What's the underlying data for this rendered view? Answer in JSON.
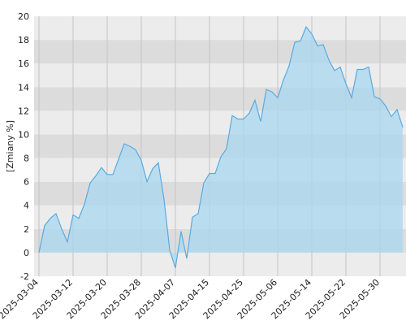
{
  "chart_data": {
    "type": "area",
    "ylabel": "[Zmiany %]",
    "categories": [
      "2025-03-04",
      null,
      null,
      null,
      null,
      null,
      "2025-03-12",
      null,
      null,
      null,
      null,
      null,
      "2025-03-20",
      null,
      null,
      null,
      null,
      null,
      "2025-03-28",
      null,
      null,
      null,
      null,
      null,
      "2025-04-07",
      null,
      null,
      null,
      null,
      null,
      "2025-04-15",
      null,
      null,
      null,
      null,
      null,
      "2025-04-25",
      null,
      null,
      null,
      null,
      null,
      "2025-05-06",
      null,
      null,
      null,
      null,
      null,
      "2025-05-14",
      null,
      null,
      null,
      null,
      null,
      "2025-05-22",
      null,
      null,
      null,
      null,
      null,
      "2025-05-30",
      null,
      null,
      null,
      null
    ],
    "values": [
      0,
      2.3,
      2.9,
      3.3,
      2.0,
      0.9,
      3.2,
      2.9,
      4.1,
      5.9,
      6.5,
      7.2,
      6.6,
      6.6,
      7.9,
      9.2,
      9.0,
      8.7,
      7.8,
      6.0,
      7.1,
      7.6,
      4.5,
      0.2,
      -1.3,
      1.8,
      -0.5,
      3.0,
      3.3,
      5.9,
      6.7,
      6.7,
      8.1,
      8.8,
      11.6,
      11.3,
      11.3,
      11.8,
      12.9,
      11.1,
      13.8,
      13.6,
      13.1,
      14.6,
      15.8,
      17.8,
      17.9,
      19.1,
      18.5,
      17.5,
      17.6,
      16.3,
      15.4,
      15.7,
      14.3,
      13.1,
      15.5,
      15.5,
      15.7,
      13.2,
      13.0,
      12.4,
      11.5,
      12.1,
      10.6
    ],
    "color": "#5aaae0",
    "ylim": [
      -2,
      20
    ],
    "yticks": [
      -2,
      0,
      2,
      4,
      6,
      8,
      10,
      12,
      14,
      16,
      18,
      20
    ],
    "grid": true
  }
}
